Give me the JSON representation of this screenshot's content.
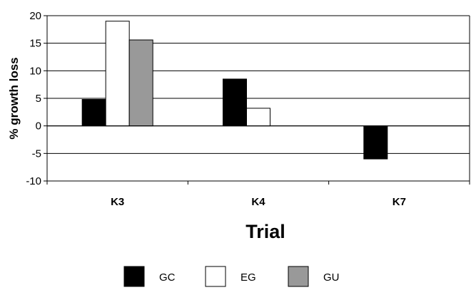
{
  "chart_data": {
    "type": "bar",
    "title": "",
    "xlabel": "Trial",
    "ylabel": "% growth loss",
    "categories": [
      "K3",
      "K4",
      "K7"
    ],
    "ylim": [
      -10,
      20
    ],
    "yticks": [
      20,
      15,
      10,
      5,
      0,
      -5,
      -10
    ],
    "grid": true,
    "legend_position": "bottom",
    "series": [
      {
        "name": "GC",
        "values": [
          4.8,
          8.5,
          -6.0
        ],
        "color": "#000000"
      },
      {
        "name": "EG",
        "values": [
          19.0,
          3.2,
          null
        ],
        "color": "#ffffff"
      },
      {
        "name": "GU",
        "values": [
          15.6,
          null,
          null
        ],
        "color": "#999999"
      }
    ]
  }
}
